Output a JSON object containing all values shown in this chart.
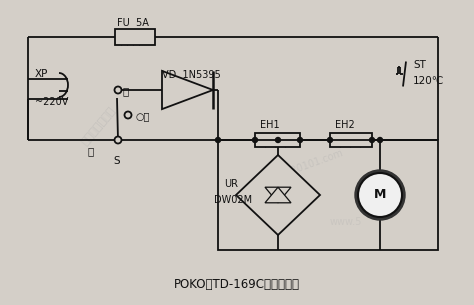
{
  "bg_color": "#d4cfc8",
  "line_color": "#111111",
  "title": "POKO牌TD-169C型电吹风机",
  "labels": {
    "XP": "XP",
    "voltage": "~220V",
    "S": "S",
    "warm": "暖",
    "stop": "○停",
    "hot": "热",
    "FU": "FU  5A",
    "VD": "VD  1N5395",
    "EH1": "EH1",
    "EH2": "EH2",
    "UR": "UR",
    "DW02M": "DW02M",
    "ST": "ST",
    "temp": "120℃",
    "M": "M"
  },
  "fig_width": 4.74,
  "fig_height": 3.05,
  "dpi": 100
}
